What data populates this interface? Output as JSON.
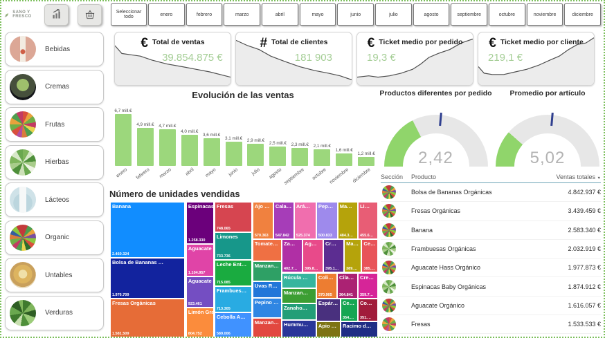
{
  "logo": {
    "text": "SANO Y FRESCO"
  },
  "topbar": {
    "select_all": "Seleccionar todo",
    "months": [
      "enero",
      "febrero",
      "marzo",
      "abril",
      "mayo",
      "junio",
      "julio",
      "agosto",
      "septiembre",
      "octubre",
      "noviembre",
      "diciembre"
    ]
  },
  "sidebar": {
    "items": [
      {
        "id": "bebidas",
        "label": "Bebidas"
      },
      {
        "id": "cremas",
        "label": "Cremas"
      },
      {
        "id": "frutas",
        "label": "Frutas"
      },
      {
        "id": "hierbas",
        "label": "Hierbas"
      },
      {
        "id": "lacteos",
        "label": "Lácteos"
      },
      {
        "id": "organic",
        "label": "Organic"
      },
      {
        "id": "untables",
        "label": "Untables"
      },
      {
        "id": "verduras",
        "label": "Verduras"
      }
    ]
  },
  "kpis": [
    {
      "id": "total-ventas",
      "icon": "€",
      "title": "Total de ventas",
      "value": "39.854.875 €",
      "trend": "down"
    },
    {
      "id": "total-clientes",
      "icon": "#",
      "title": "Total de clientes",
      "value": "181 903",
      "trend": "down"
    },
    {
      "id": "ticket-pedido",
      "icon": "€",
      "title": "Ticket medio por pedido",
      "value": "19,3 €",
      "trend": "up"
    },
    {
      "id": "ticket-cliente",
      "icon": "€",
      "title": "Ticket medio por cliente",
      "value": "219,1 €",
      "trend": "up"
    }
  ],
  "sales_chart": {
    "type": "bar",
    "title": "Evolución de las ventas",
    "categories": [
      "enero",
      "febrero",
      "marzo",
      "abril",
      "mayo",
      "junio",
      "julio",
      "agosto",
      "septiembre",
      "octubre",
      "noviembre",
      "diciembre"
    ],
    "values": [
      6.7,
      4.9,
      4.7,
      4.0,
      3.6,
      3.1,
      2.9,
      2.5,
      2.3,
      2.1,
      1.6,
      1.2
    ],
    "value_labels": [
      "6,7 mill.€",
      "4,9 mill.€",
      "4,7 mill.€",
      "4,0 mill.€",
      "3,6 mill.€",
      "3,1 mill.€",
      "2,9 mill.€",
      "2,5 mill.€",
      "2,3 mill.€",
      "2,1 mill.€",
      "1,6 mill.€",
      "1,2 mill.€"
    ],
    "unit": "mill.€",
    "bar_color": "#9CD77C"
  },
  "gauges": [
    {
      "title": "Productos diferentes por pedido",
      "value": "2,42",
      "fill_pct": 35,
      "fill_color": "#90D56B",
      "target_color": "#2F3F8F"
    },
    {
      "title": "Promedio por artículo",
      "value": "5,02",
      "fill_pct": 23,
      "fill_color": "#90D56B",
      "target_color": "#2F3F8F"
    }
  ],
  "treemap": {
    "title": "Número de unidades vendidas",
    "cells": [
      [
        "Banana",
        "2.460.324",
        "#118DFF",
        0.5,
        0,
        27.7,
        41.5
      ],
      [
        "Bolsa de Bananas …",
        "1.976.709",
        "#12239E",
        0.5,
        41.5,
        27.7,
        30.0
      ],
      [
        "Fresas Orgánicas",
        "1.581.509",
        "#E66C37",
        0.5,
        71.5,
        27.7,
        28.5
      ],
      [
        "Espinacas B…",
        "1.258.330",
        "#6B007B",
        28.7,
        0,
        10.3,
        31.1
      ],
      [
        "Aguacate H…",
        "1.104.957",
        "#E044A7",
        28.7,
        31.1,
        10.3,
        23.8
      ],
      [
        "Aguacate O…",
        "923.461",
        "#744EC2",
        28.7,
        54.9,
        10.3,
        23.3
      ],
      [
        "Limón Gran…",
        "804.752",
        "#FB8C3C",
        28.7,
        78.2,
        10.3,
        21.8
      ],
      [
        "Fresas",
        "748.065",
        "#D64550",
        39.2,
        0,
        13.8,
        22.3
      ],
      [
        "Limones",
        "733.736",
        "#17978A",
        39.2,
        22.3,
        13.8,
        20.7
      ],
      [
        "Leche Ent…",
        "715.085",
        "#1AAB40",
        39.2,
        43.0,
        13.8,
        19.2
      ],
      [
        "Frambues…",
        "713.305",
        "#29ABE2",
        39.2,
        62.2,
        13.8,
        19.2
      ],
      [
        "Cebolla A…",
        "589.006",
        "#4092FF",
        39.2,
        81.4,
        13.8,
        18.6
      ],
      [
        "Ajo …",
        "570.363",
        "#F0813F",
        53.3,
        0,
        7.7,
        27.5
      ],
      [
        "Cala…",
        "547.842",
        "#A63DB8",
        61.0,
        0,
        7.7,
        27.5
      ],
      [
        "Ará…",
        "525.374",
        "#F06EAE",
        68.7,
        0,
        8.2,
        27.5
      ],
      [
        "Pep…",
        "500.833",
        "#9E8AEC",
        76.9,
        0,
        7.9,
        27.5
      ],
      [
        "Ma…",
        "484.3…",
        "#B5A30B",
        84.8,
        0,
        7.5,
        27.5
      ],
      [
        "Li…",
        "455.6…",
        "#E85D75",
        92.3,
        0,
        7.4,
        27.5
      ],
      [
        "Tomate…",
        "",
        "#EF7043",
        53.3,
        27.5,
        10.8,
        16.6
      ],
      [
        "Za…",
        "402.7…",
        "#B02FA5",
        64.1,
        27.5,
        7.7,
        24.8
      ],
      [
        "Ag…",
        "395.8…",
        "#E84A8A",
        71.8,
        27.5,
        7.7,
        24.8
      ],
      [
        "Cr…",
        "395.1…",
        "#5C2D91",
        79.5,
        27.5,
        7.7,
        24.8
      ],
      [
        "Ma…",
        "389.…",
        "#B5A30B",
        87.2,
        27.5,
        6.5,
        24.8
      ],
      [
        "Ce…",
        "385.…",
        "#E85459",
        93.7,
        27.5,
        6.0,
        24.8
      ],
      [
        "Manzan…",
        "",
        "#2EA065",
        53.3,
        44.1,
        10.8,
        14.5
      ],
      [
        "Uvas R…",
        "",
        "#2176D9",
        53.3,
        58.6,
        10.8,
        12.4
      ],
      [
        "Pepino …",
        "",
        "#2F86E3",
        53.3,
        71.0,
        10.8,
        14.5
      ],
      [
        "Manzan…",
        "",
        "#E2483F",
        53.3,
        85.5,
        10.8,
        14.5
      ],
      [
        "Rúcula …",
        "",
        "#35B59E",
        64.1,
        52.3,
        12.8,
        11.4
      ],
      [
        "Manzan…",
        "",
        "#3C9E33",
        64.1,
        63.7,
        12.8,
        11.4
      ],
      [
        "Zanaho…",
        "",
        "#239E77",
        64.1,
        75.1,
        12.8,
        11.9
      ],
      [
        "Hummu…",
        "",
        "#2A3699",
        64.1,
        87.0,
        12.8,
        13.0
      ],
      [
        "Coli…",
        "370.905",
        "#ED7D31",
        76.9,
        52.3,
        7.7,
        19.2
      ],
      [
        "Cila…",
        "364.841",
        "#AB2273",
        84.6,
        52.3,
        7.7,
        19.2
      ],
      [
        "Cre…",
        "359.7…",
        "#D62598",
        92.3,
        52.3,
        7.4,
        19.2
      ],
      [
        "Espár…",
        "",
        "#49307E",
        76.9,
        71.5,
        9.0,
        16.6
      ],
      [
        "Ce…",
        "354.…",
        "#16A653",
        85.9,
        71.5,
        6.4,
        16.6
      ],
      [
        "Co…",
        "351.…",
        "#A11C3B",
        92.3,
        71.5,
        7.4,
        16.6
      ],
      [
        "Apio …",
        "",
        "#7D7414",
        76.9,
        88.1,
        9.0,
        11.9
      ],
      [
        "Racimo d…",
        "",
        "#1F2E85",
        85.9,
        88.1,
        13.8,
        11.9
      ]
    ]
  },
  "table": {
    "columns": [
      "Sección",
      "Producto",
      "Ventas totales"
    ],
    "rows": [
      {
        "product": "Bolsa de Bananas Orgánicas",
        "value": "4.842.937 €",
        "thumb": "organic"
      },
      {
        "product": "Fresas Orgánicas",
        "value": "3.439.459 €",
        "thumb": "organic"
      },
      {
        "product": "Banana",
        "value": "2.583.340 €",
        "thumb": "organic"
      },
      {
        "product": "Frambuesas Orgánicas",
        "value": "2.032.919 €",
        "thumb": "hierbas"
      },
      {
        "product": "Aguacate Hass Orgánico",
        "value": "1.977.873 €",
        "thumb": "organic"
      },
      {
        "product": "Espinacas Baby Orgánicas",
        "value": "1.874.912 €",
        "thumb": "hierbas"
      },
      {
        "product": "Aguacate Orgánico",
        "value": "1.616.057 €",
        "thumb": "organic"
      },
      {
        "product": "Fresas",
        "value": "1.533.533 €",
        "thumb": "frutas"
      }
    ]
  }
}
